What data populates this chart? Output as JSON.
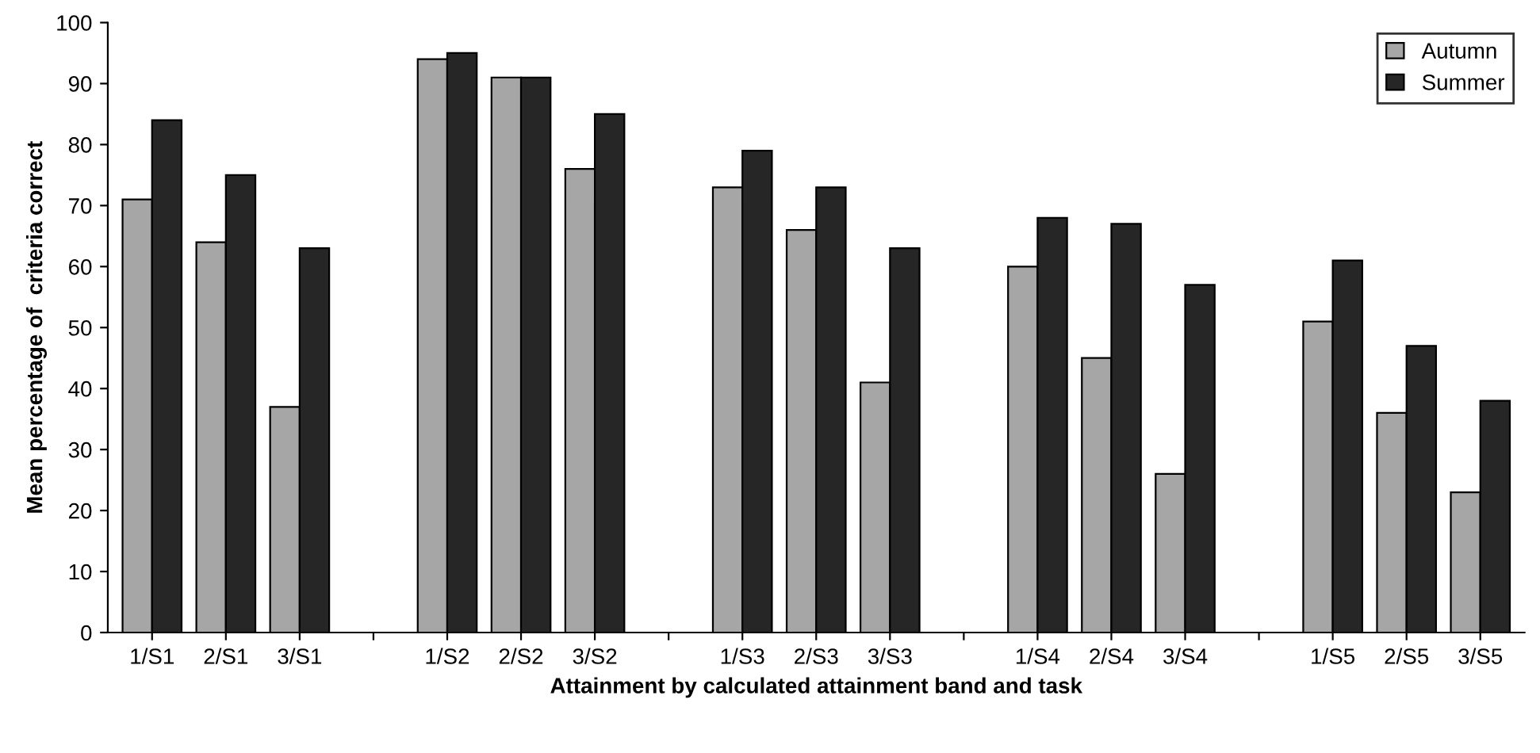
{
  "chart_data": {
    "type": "bar",
    "xlabel": "Attainment by calculated attainment band and task",
    "ylabel": "Mean percentage of  criteria correct",
    "categories": [
      "1/S1",
      "2/S1",
      "3/S1",
      null,
      "1/S2",
      "2/S2",
      "3/S2",
      null,
      "1/S3",
      "2/S3",
      "3/S3",
      null,
      "1/S4",
      "2/S4",
      "3/S4",
      null,
      "1/S5",
      "2/S5",
      "3/S5"
    ],
    "series": [
      {
        "name": "Autumn",
        "color": "#a6a6a6",
        "values": [
          71,
          64,
          37,
          null,
          94,
          91,
          76,
          null,
          73,
          66,
          41,
          null,
          60,
          45,
          26,
          null,
          51,
          36,
          23
        ]
      },
      {
        "name": "Summer",
        "color": "#262626",
        "values": [
          84,
          75,
          63,
          null,
          95,
          91,
          85,
          null,
          79,
          73,
          63,
          null,
          68,
          67,
          57,
          null,
          61,
          47,
          38
        ]
      }
    ],
    "ylim": [
      0,
      100
    ],
    "yticks": [
      0,
      10,
      20,
      30,
      40,
      50,
      60,
      70,
      80,
      90,
      100
    ],
    "grid": false,
    "legend": "top right"
  }
}
